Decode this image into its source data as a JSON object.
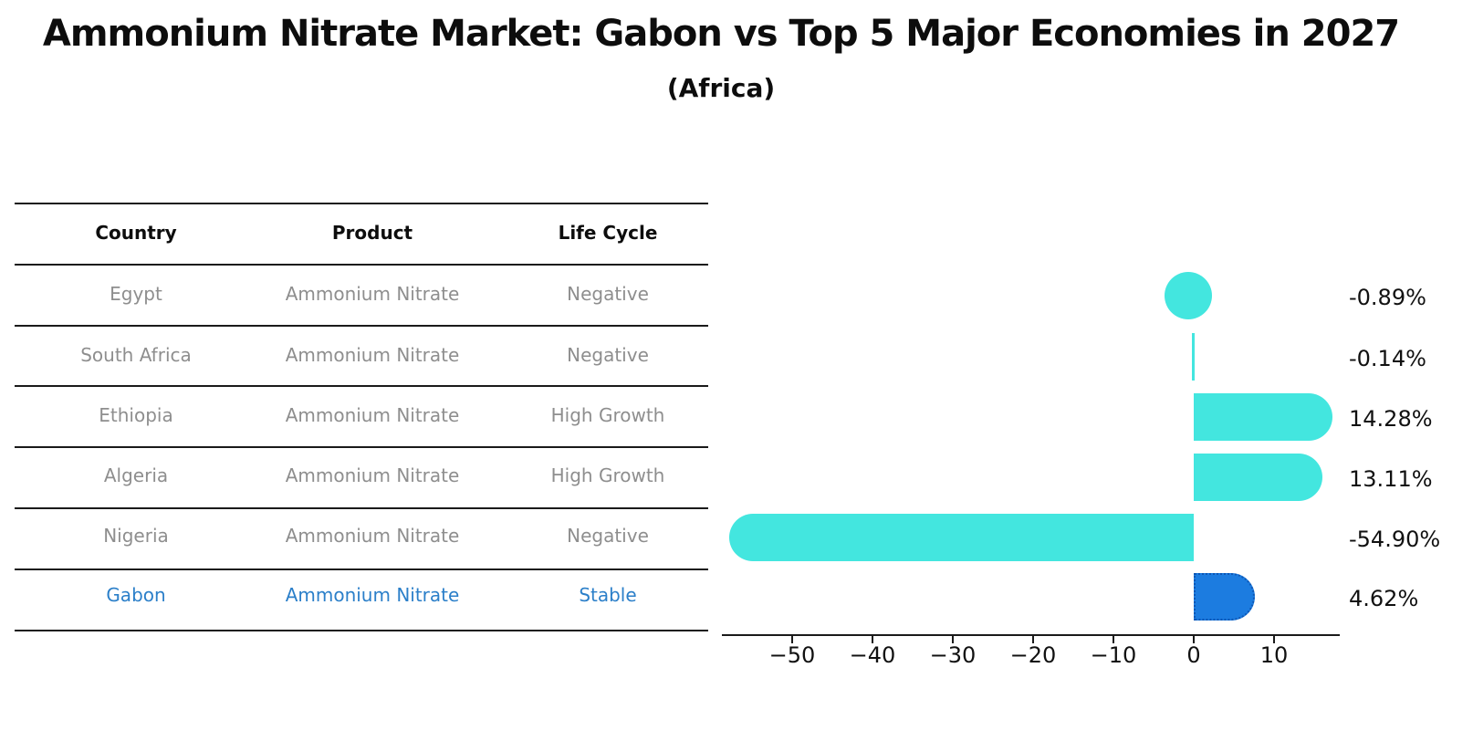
{
  "title": "Ammonium Nitrate Market: Gabon vs Top 5 Major Economies in 2027",
  "subtitle": "(Africa)",
  "table": {
    "headers": [
      "Country",
      "Product",
      "Life Cycle"
    ],
    "rows": [
      {
        "country": "Egypt",
        "product": "Ammonium Nitrate",
        "life_cycle": "Negative",
        "highlight": false
      },
      {
        "country": "South Africa",
        "product": "Ammonium Nitrate",
        "life_cycle": "Negative",
        "highlight": false
      },
      {
        "country": "Ethiopia",
        "product": "Ammonium Nitrate",
        "life_cycle": "High Growth",
        "highlight": false
      },
      {
        "country": "Algeria",
        "product": "Ammonium Nitrate",
        "life_cycle": "High Growth",
        "highlight": false
      },
      {
        "country": "Nigeria",
        "product": "Ammonium Nitrate",
        "life_cycle": "Negative",
        "highlight": false
      },
      {
        "country": "Gabon",
        "product": "Ammonium Nitrate",
        "life_cycle": "Stable",
        "highlight": true
      }
    ]
  },
  "chart_data": {
    "type": "bar",
    "orientation": "horizontal",
    "categories": [
      "Egypt",
      "South Africa",
      "Ethiopia",
      "Algeria",
      "Nigeria",
      "Gabon"
    ],
    "values": [
      -0.89,
      -0.14,
      14.28,
      13.11,
      -54.9,
      4.62
    ],
    "value_labels": [
      "-0.89%",
      "-0.14%",
      "14.28%",
      "13.11%",
      "-54.90%",
      "4.62%"
    ],
    "xticks": [
      -50,
      -40,
      -30,
      -20,
      -10,
      0,
      10
    ],
    "xtick_labels": [
      "−50",
      "−40",
      "−30",
      "−20",
      "−10",
      "0",
      "10"
    ],
    "xlim": [
      -58.8,
      18.2
    ],
    "highlight_index": 5,
    "grid": false,
    "legend": null,
    "xlabel": "",
    "ylabel": ""
  },
  "colors": {
    "bar": "#43e6df",
    "highlight_bar": "#1c7ce0",
    "highlight_bar_edge": "#0e57b5",
    "row_text": "#8e8e8e",
    "highlight_text": "#2b7fc9",
    "axis": "#1a1a1a"
  }
}
